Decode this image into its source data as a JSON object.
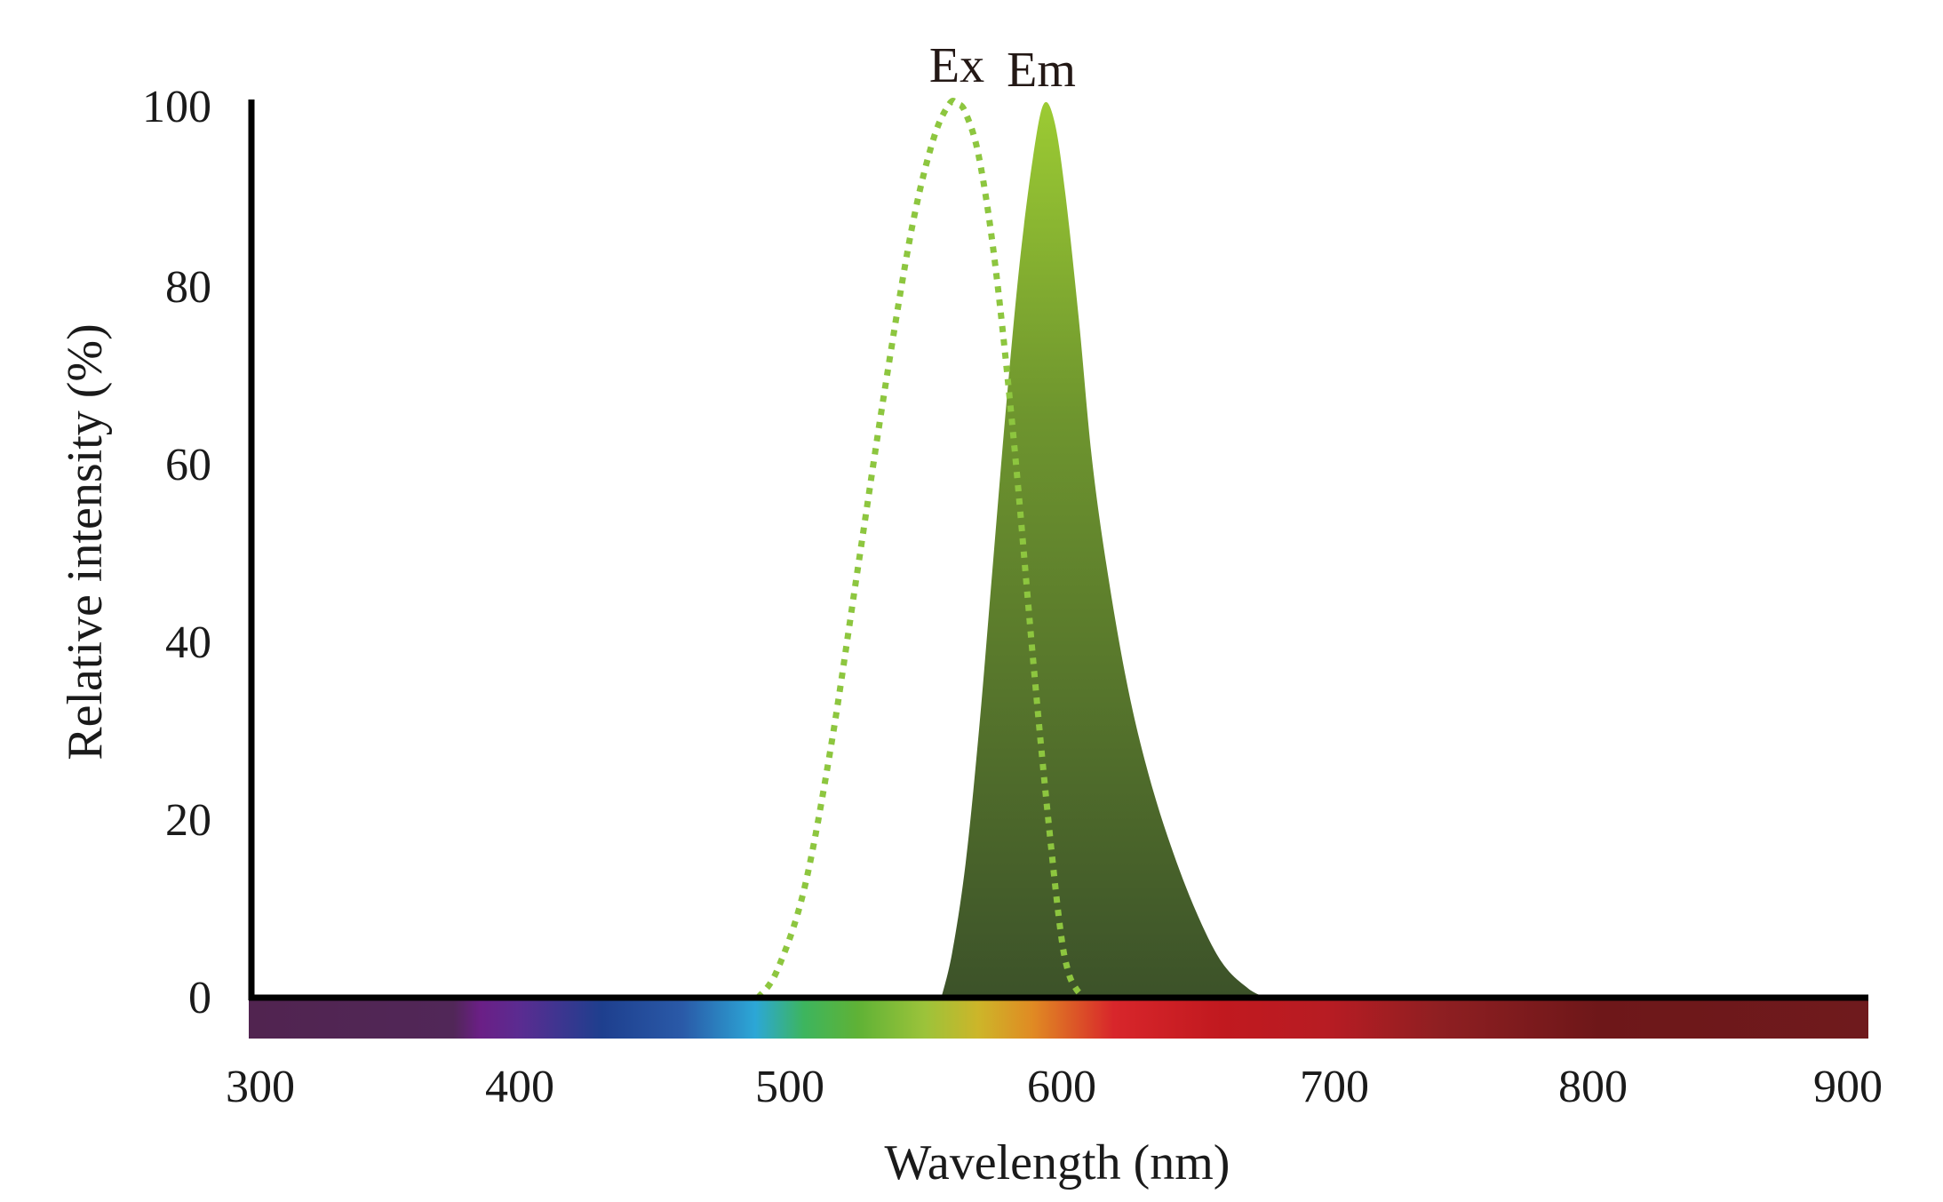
{
  "chart_data": {
    "type": "area",
    "title": "",
    "xlabel": "Wavelength (nm)",
    "ylabel": "Relative intensity (%)",
    "xlim": [
      300,
      900
    ],
    "ylim": [
      0,
      100
    ],
    "x_ticks": [
      "300",
      "400",
      "500",
      "600",
      "700",
      "800",
      "900"
    ],
    "y_ticks": [
      "0",
      "20",
      "40",
      "60",
      "80",
      "100"
    ],
    "grid": false,
    "legend": "none",
    "series": [
      {
        "name": "Ex",
        "style": "dotted",
        "color": "#8dc63f",
        "x": [
          488,
          495,
          505,
          515,
          525,
          535,
          545,
          553,
          559,
          562,
          565,
          570,
          576,
          583,
          590,
          595,
          600,
          603,
          606,
          609
        ],
        "y": [
          0,
          3,
          12,
          28,
          48,
          68,
          86,
          96,
          100,
          100,
          99,
          94,
          82,
          62,
          38,
          22,
          8,
          3,
          1,
          0
        ]
      },
      {
        "name": "Em",
        "style": "filled-gradient",
        "color": "#9cc93a",
        "x": [
          556,
          560,
          565,
          570,
          575,
          580,
          585,
          590,
          594,
          598,
          602,
          607,
          612,
          618,
          625,
          632,
          640,
          650,
          660,
          670,
          677
        ],
        "y": [
          0,
          5,
          15,
          30,
          48,
          66,
          82,
          94,
          100,
          98,
          90,
          76,
          60,
          47,
          35,
          26,
          18,
          10,
          4,
          1,
          0
        ]
      }
    ],
    "colors": {
      "em_top": "#9ccb33",
      "em_bottom": "#3c5229",
      "ex_line": "#8dc63f",
      "axis": "#000000"
    },
    "spectrum_bar": [
      {
        "wl": 300,
        "color": "#512450"
      },
      {
        "wl": 375,
        "color": "#512758"
      },
      {
        "wl": 385,
        "color": "#6b1f86"
      },
      {
        "wl": 400,
        "color": "#5a2c91"
      },
      {
        "wl": 430,
        "color": "#1e3f8e"
      },
      {
        "wl": 460,
        "color": "#2a5aa8"
      },
      {
        "wl": 487,
        "color": "#2ca7d6"
      },
      {
        "wl": 505,
        "color": "#3db55e"
      },
      {
        "wl": 525,
        "color": "#5fb236"
      },
      {
        "wl": 550,
        "color": "#9cc33a"
      },
      {
        "wl": 570,
        "color": "#cdb529"
      },
      {
        "wl": 590,
        "color": "#e08a23"
      },
      {
        "wl": 620,
        "color": "#d8262b"
      },
      {
        "wl": 660,
        "color": "#c1191f"
      },
      {
        "wl": 700,
        "color": "#b71c23"
      },
      {
        "wl": 740,
        "color": "#8f1f22"
      },
      {
        "wl": 800,
        "color": "#6e1719"
      },
      {
        "wl": 900,
        "color": "#6f1a1d"
      }
    ]
  }
}
